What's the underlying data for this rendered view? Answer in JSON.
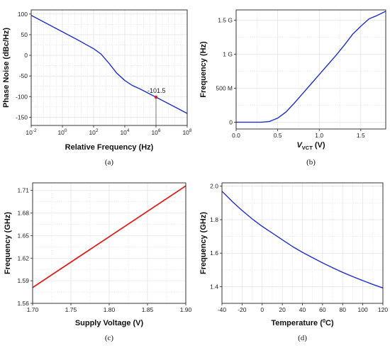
{
  "chart_data": [
    {
      "id": "a",
      "caption": "(a)",
      "type": "line",
      "xlabel": "Relative Frequency (Hz)",
      "ylabel": "Phase Noise (dBc/Hz)",
      "xscale": "log",
      "xlim": [
        0.01,
        100000000
      ],
      "ylim": [
        -170,
        110
      ],
      "xticks": [
        0.01,
        1,
        100,
        10000,
        1000000,
        100000000
      ],
      "xtick_labels": [
        [
          "10",
          "-2"
        ],
        [
          "10",
          "0"
        ],
        [
          "10",
          "2"
        ],
        [
          "10",
          "4"
        ],
        [
          "10",
          "6"
        ],
        [
          "10",
          "8"
        ]
      ],
      "yticks": [
        100,
        50,
        0,
        -50,
        -100,
        -150
      ],
      "ytick_labels": [
        "100",
        "50",
        "0",
        "-50",
        "-100",
        "-150"
      ],
      "grid": true,
      "color": "#1f2fd0",
      "series": [
        {
          "x": [
            0.01,
            0.1,
            1,
            10,
            100,
            300,
            1000,
            3000,
            10000,
            30000,
            100000,
            1000000,
            10000000,
            100000000
          ],
          "y": [
            97,
            77,
            57,
            37,
            16,
            3,
            -20,
            -43,
            -61,
            -73,
            -82,
            -101.5,
            -121,
            -141
          ]
        }
      ],
      "marker": {
        "x": 1000000,
        "y": -101.5,
        "label": "-101.5",
        "color": "#d0202a"
      }
    },
    {
      "id": "b",
      "caption": "(b)",
      "type": "line",
      "xlabel_main": "V",
      "xlabel_sub": "VCT",
      "xlabel_unit": " (V)",
      "ylabel": "Frequency (Hz)",
      "xlim": [
        0,
        1.8
      ],
      "ylim": [
        -0.1,
        1.65
      ],
      "xticks": [
        0,
        0.5,
        1.0,
        1.5
      ],
      "xtick_labels": [
        "0.0",
        "0.5",
        "1.0",
        "1.5"
      ],
      "yticks": [
        0,
        0.5,
        1,
        1.5
      ],
      "ytick_labels": [
        "0",
        "500 M",
        "1 G",
        "1.5 G"
      ],
      "grid": true,
      "color": "#1f2fd0",
      "series": [
        {
          "x": [
            0,
            0.3,
            0.4,
            0.5,
            0.6,
            0.7,
            0.8,
            0.9,
            1.0,
            1.1,
            1.2,
            1.3,
            1.4,
            1.5,
            1.6,
            1.7,
            1.8
          ],
          "y": [
            0,
            0,
            0.01,
            0.06,
            0.15,
            0.28,
            0.42,
            0.56,
            0.7,
            0.84,
            0.98,
            1.13,
            1.29,
            1.41,
            1.52,
            1.57,
            1.63
          ]
        }
      ]
    },
    {
      "id": "c",
      "caption": "(c)",
      "type": "line",
      "xlabel": "Supply Voltage (V)",
      "ylabel": "Frequency (GHz)",
      "xlim": [
        1.7,
        1.9
      ],
      "ylim": [
        1.56,
        1.72
      ],
      "xticks": [
        1.7,
        1.75,
        1.8,
        1.85,
        1.9
      ],
      "xtick_labels": [
        "1.70",
        "1.75",
        "1.80",
        "1.85",
        "1.90"
      ],
      "yticks": [
        1.56,
        1.59,
        1.62,
        1.65,
        1.68,
        1.71
      ],
      "ytick_labels": [
        "1.56",
        "1.59",
        "1.62",
        "1.65",
        "1.68",
        "1.71"
      ],
      "grid": true,
      "color": "#e0201a",
      "series": [
        {
          "x": [
            1.7,
            1.9
          ],
          "y": [
            1.581,
            1.716
          ]
        }
      ]
    },
    {
      "id": "d",
      "caption": "(d)",
      "type": "line",
      "xlabel_main": "Temperature (",
      "xlabel_sup": "0",
      "xlabel_unit": "C)",
      "ylabel": "Frequency (GHz)",
      "xlim": [
        -40,
        120
      ],
      "ylim": [
        1.3,
        2.02
      ],
      "xticks": [
        -40,
        -20,
        0,
        20,
        40,
        60,
        80,
        100,
        120
      ],
      "xtick_labels": [
        "-40",
        "-20",
        "0",
        "20",
        "40",
        "60",
        "80",
        "100",
        "120"
      ],
      "yticks": [
        1.4,
        1.6,
        1.8,
        2.0
      ],
      "ytick_labels": [
        "1.4",
        "1.6",
        "1.8",
        "2.0"
      ],
      "grid": true,
      "color": "#1f2fd0",
      "series": [
        {
          "x": [
            -40,
            -30,
            -20,
            -10,
            0,
            10,
            20,
            30,
            40,
            50,
            60,
            70,
            80,
            90,
            100,
            110,
            120
          ],
          "y": [
            1.97,
            1.91,
            1.855,
            1.805,
            1.76,
            1.72,
            1.68,
            1.64,
            1.605,
            1.573,
            1.542,
            1.513,
            1.485,
            1.46,
            1.436,
            1.413,
            1.392
          ]
        }
      ]
    }
  ]
}
